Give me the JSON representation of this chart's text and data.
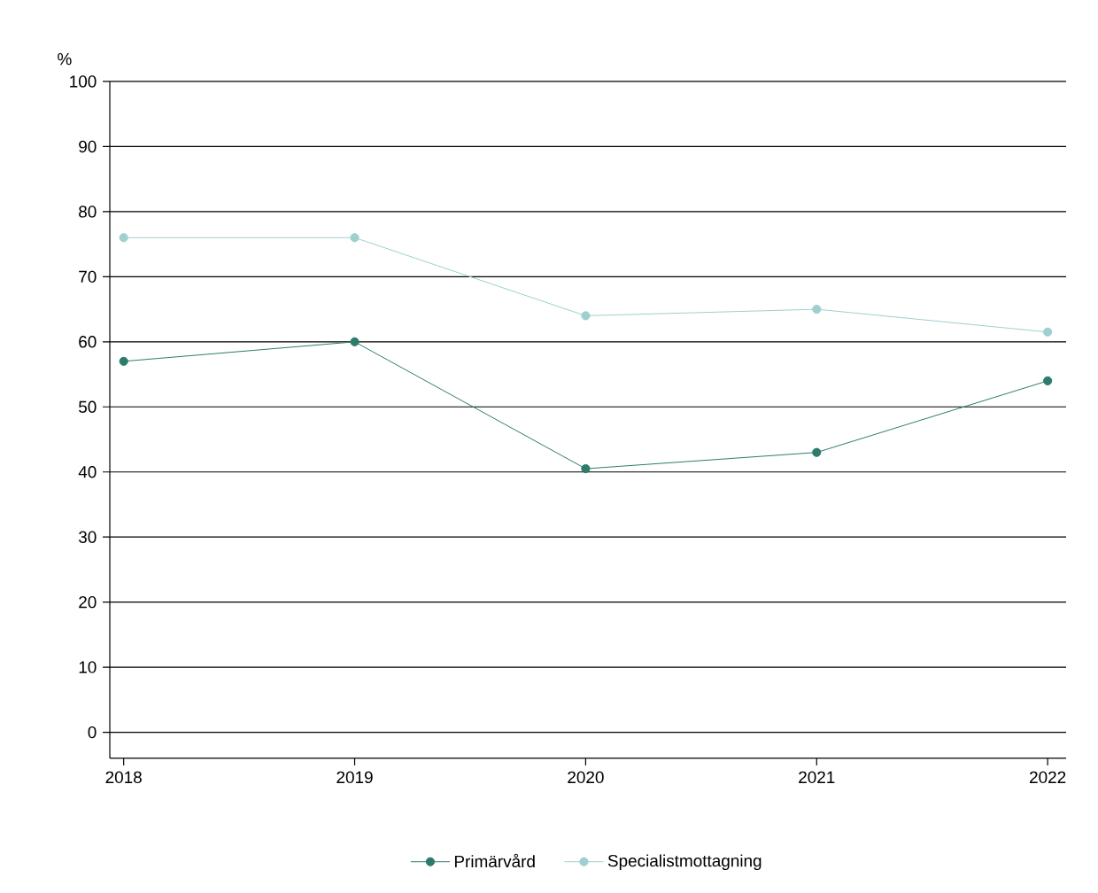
{
  "chart_data": {
    "type": "line",
    "ylabel": "%",
    "x": [
      2018,
      2019,
      2020,
      2021,
      2022
    ],
    "series": [
      {
        "name": "Primärvård",
        "color": "#2e7b6c",
        "values": [
          57,
          60,
          40.5,
          43,
          54
        ]
      },
      {
        "name": "Specialistmottagning",
        "color": "#9fcfcf",
        "values": [
          76,
          76,
          64,
          65,
          61.5
        ]
      }
    ],
    "xlim": [
      2017.94,
      2022.08
    ],
    "ylim": [
      -4,
      100
    ],
    "xticks": [
      2018,
      2019,
      2020,
      2021,
      2022
    ],
    "yticks": [
      0,
      10,
      20,
      30,
      40,
      50,
      60,
      70,
      80,
      90,
      100
    ],
    "grid": "y",
    "legend": "bottom",
    "marker": "circle",
    "line_style": "solid"
  }
}
